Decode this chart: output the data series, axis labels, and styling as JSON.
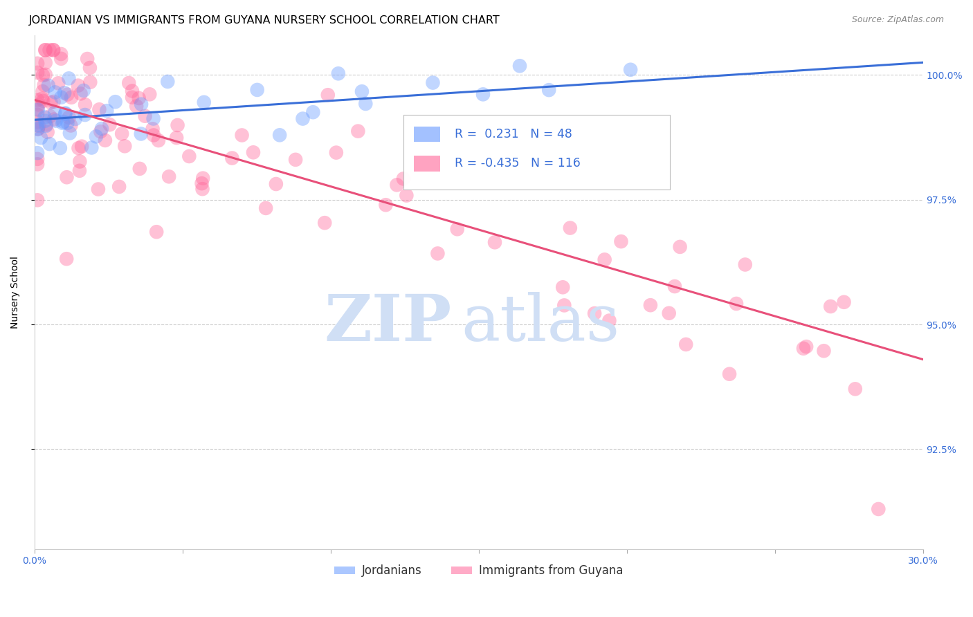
{
  "title": "JORDANIAN VS IMMIGRANTS FROM GUYANA NURSERY SCHOOL CORRELATION CHART",
  "source": "Source: ZipAtlas.com",
  "ylabel": "Nursery School",
  "xmin": 0.0,
  "xmax": 0.3,
  "ymin": 90.5,
  "ymax": 100.8,
  "r_jordanian": 0.231,
  "n_jordanian": 48,
  "r_guyana": -0.435,
  "n_guyana": 116,
  "color_jordanian": "#6699ff",
  "color_guyana": "#ff6699",
  "color_trendline_jordanian": "#3a6fd8",
  "color_trendline_guyana": "#e8507a",
  "legend_label_jordanian": "Jordanians",
  "legend_label_guyana": "Immigrants from Guyana",
  "watermark_zip": "ZIP",
  "watermark_atlas": "atlas",
  "watermark_color": "#d0dff5",
  "title_fontsize": 11.5,
  "axis_label_fontsize": 10,
  "tick_fontsize": 10,
  "legend_fontsize": 12,
  "source_fontsize": 9,
  "grid_color": "#cccccc",
  "background_color": "#ffffff",
  "trendline_j_y0": 99.1,
  "trendline_j_y1": 100.25,
  "trendline_g_y0": 99.5,
  "trendline_g_y1": 94.3
}
